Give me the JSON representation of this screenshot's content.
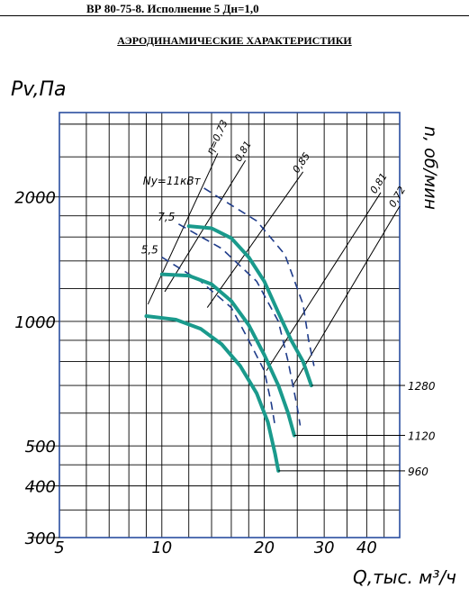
{
  "header": {
    "title": "ВР 80-75-8. Исполнение 5 Дн=1,0"
  },
  "chart_data": {
    "type": "line",
    "title": "АЭРОДИНАМИЧЕСКИЕ ХАРАКТЕРИСТИКИ",
    "xlabel": "Q,тыс. м³/ч",
    "ylabel": "Pv,Па",
    "right_axis_label": "n, об/мин",
    "x_scale": "log",
    "y_scale": "log",
    "xlim": [
      5,
      50
    ],
    "ylim": [
      300,
      3200
    ],
    "x_ticks": [
      5,
      10,
      20,
      30,
      40
    ],
    "x_tick_labels": [
      "5",
      "10",
      "20",
      "30",
      "40"
    ],
    "y_ticks": [
      300,
      400,
      500,
      1000,
      2000
    ],
    "y_tick_labels": [
      "300",
      "400",
      "500",
      "1000",
      "2000"
    ],
    "grid": true,
    "colors": {
      "curve": "#1a9a8c",
      "power": "#1f3c8a",
      "grid": "#000000",
      "frame": "#2a4ea0"
    },
    "series": [
      {
        "name": "1280",
        "points": [
          [
            12,
            1700
          ],
          [
            14,
            1680
          ],
          [
            16,
            1590
          ],
          [
            18,
            1430
          ],
          [
            20,
            1250
          ],
          [
            22,
            1050
          ],
          [
            24,
            900
          ],
          [
            26,
            800
          ],
          [
            27.5,
            700
          ]
        ]
      },
      {
        "name": "1120",
        "points": [
          [
            10,
            1300
          ],
          [
            12,
            1290
          ],
          [
            14,
            1230
          ],
          [
            16,
            1120
          ],
          [
            18,
            980
          ],
          [
            20,
            830
          ],
          [
            22,
            700
          ],
          [
            23.5,
            600
          ],
          [
            24.5,
            530
          ]
        ]
      },
      {
        "name": "960",
        "points": [
          [
            9,
            1030
          ],
          [
            11,
            1010
          ],
          [
            13,
            960
          ],
          [
            15,
            880
          ],
          [
            17,
            780
          ],
          [
            19,
            670
          ],
          [
            20.5,
            570
          ],
          [
            21.5,
            480
          ],
          [
            22,
            435
          ]
        ]
      }
    ],
    "efficiency_lines": [
      {
        "label": "0,81",
        "points": [
          [
            10.2,
            1180
          ],
          [
            17.6,
            2450
          ]
        ]
      },
      {
        "label": "0,81",
        "points": [
          [
            20.3,
            760
          ],
          [
            44,
            2050
          ]
        ]
      },
      {
        "label": "0,85",
        "points": [
          [
            13.6,
            1080
          ],
          [
            26,
            2300
          ]
        ]
      },
      {
        "label": "0,72",
        "points": [
          [
            24.3,
            700
          ],
          [
            50,
            1900
          ]
        ]
      },
      {
        "label": "η=0,73",
        "points": [
          [
            9.1,
            1100
          ],
          [
            14.6,
            2550
          ]
        ]
      }
    ],
    "power_lines": [
      {
        "label": "Ny=11кВт",
        "points": [
          [
            13.3,
            2100
          ],
          [
            19,
            1750
          ],
          [
            23,
            1450
          ],
          [
            26,
            1100
          ],
          [
            27,
            900
          ],
          [
            28,
            780
          ]
        ]
      },
      {
        "label": "7,5",
        "points": [
          [
            11.2,
            1720
          ],
          [
            15,
            1500
          ],
          [
            19,
            1250
          ],
          [
            22,
            1000
          ],
          [
            23.5,
            800
          ],
          [
            25,
            620
          ],
          [
            25.5,
            560
          ]
        ]
      },
      {
        "label": "5,5",
        "points": [
          [
            10,
            1430
          ],
          [
            13,
            1250
          ],
          [
            16,
            1080
          ],
          [
            18,
            900
          ],
          [
            20,
            760
          ],
          [
            21,
            630
          ],
          [
            21.5,
            560
          ]
        ]
      }
    ],
    "rpm_labels": [
      "1280",
      "1120",
      "960"
    ]
  }
}
